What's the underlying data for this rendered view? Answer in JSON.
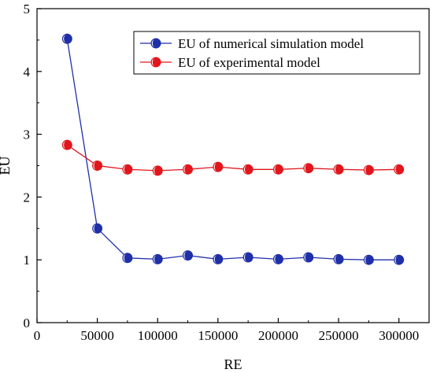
{
  "chart_data": {
    "type": "line",
    "xlabel": "RE",
    "ylabel": "EU",
    "xlim": [
      0,
      325000
    ],
    "ylim": [
      0,
      5
    ],
    "x_ticks": [
      0,
      50000,
      100000,
      150000,
      200000,
      250000,
      300000
    ],
    "y_ticks": [
      0,
      1,
      2,
      3,
      4,
      5
    ],
    "x_tick_labels": [
      "0",
      "50000",
      "100000",
      "150000",
      "200000",
      "250000",
      "300000"
    ],
    "y_tick_labels": [
      "0",
      "1",
      "2",
      "3",
      "4",
      "5"
    ],
    "grid": false,
    "legend_position": "top-right",
    "x": [
      25000,
      50000,
      75000,
      100000,
      125000,
      150000,
      175000,
      200000,
      225000,
      250000,
      275000,
      300000
    ],
    "series": [
      {
        "name": "EU of numerical simulation model",
        "color": "#1f2fa8",
        "values": [
          4.52,
          1.5,
          1.03,
          1.01,
          1.07,
          1.01,
          1.04,
          1.01,
          1.04,
          1.01,
          1.0,
          1.0
        ]
      },
      {
        "name": "EU of experimental model",
        "color": "#e0161c",
        "values": [
          2.83,
          2.5,
          2.44,
          2.42,
          2.44,
          2.48,
          2.44,
          2.44,
          2.46,
          2.44,
          2.43,
          2.44
        ]
      }
    ]
  }
}
